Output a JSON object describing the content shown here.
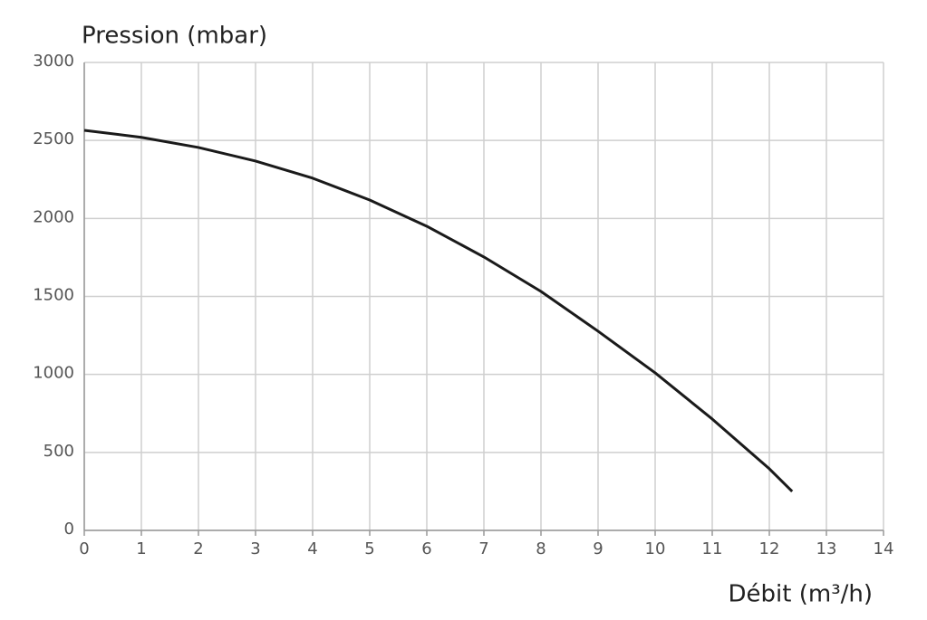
{
  "chart_data": {
    "type": "line",
    "y_label": "Pression (mbar)",
    "x_label": "Débit (m³/h)",
    "x": [
      0,
      1,
      2,
      3,
      4,
      5,
      6,
      7,
      8,
      9,
      10,
      11,
      12,
      12.4
    ],
    "values": [
      2565,
      2520,
      2455,
      2368,
      2258,
      2118,
      1950,
      1753,
      1532,
      1277,
      1010,
      714,
      395,
      250
    ],
    "color": "#1a1a1a",
    "xlim": [
      0,
      14
    ],
    "xticks": [
      0,
      1,
      2,
      3,
      4,
      5,
      6,
      7,
      8,
      9,
      10,
      11,
      12,
      13,
      14
    ],
    "ylim": [
      0,
      3000
    ],
    "yticks": [
      0,
      500,
      1000,
      1500,
      2000,
      2500,
      3000
    ],
    "grid": true
  }
}
